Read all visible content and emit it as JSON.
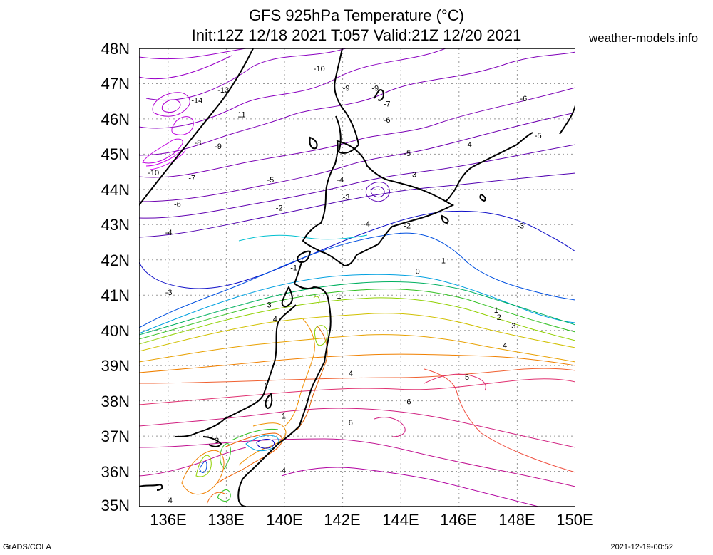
{
  "header": {
    "title_line1": "GFS 925hPa Temperature (°C)",
    "title_line2": "Init:12Z 12/18 2021 T:057 Valid:21Z 12/20 2021",
    "site": "weather-models.info"
  },
  "footer": {
    "left": "GrADS/COLA",
    "right": "2021-12-19-00:52"
  },
  "axes": {
    "lat_labels": [
      "48N",
      "47N",
      "46N",
      "45N",
      "44N",
      "43N",
      "42N",
      "41N",
      "40N",
      "39N",
      "38N",
      "37N",
      "36N",
      "35N"
    ],
    "lon_labels": [
      "136E",
      "138E",
      "140E",
      "142E",
      "144E",
      "146E",
      "148E",
      "150E"
    ],
    "lat_range": [
      35,
      48
    ],
    "lon_range": [
      135,
      150
    ],
    "grid": "dotted"
  },
  "contour_labels": [
    {
      "text": "-10",
      "lon": 141.0,
      "lat": 47.35
    },
    {
      "text": "-13",
      "lon": 137.7,
      "lat": 46.75
    },
    {
      "text": "-14",
      "lon": 136.8,
      "lat": 46.45
    },
    {
      "text": "-11",
      "lon": 138.3,
      "lat": 46.05
    },
    {
      "text": "-9",
      "lon": 142.0,
      "lat": 46.8
    },
    {
      "text": "-9",
      "lon": 143.0,
      "lat": 46.8
    },
    {
      "text": "-7",
      "lon": 143.4,
      "lat": 46.35
    },
    {
      "text": "-6",
      "lon": 143.4,
      "lat": 45.9
    },
    {
      "text": "-6",
      "lon": 148.1,
      "lat": 46.5
    },
    {
      "text": "-8",
      "lon": 136.9,
      "lat": 45.25
    },
    {
      "text": "-9",
      "lon": 137.6,
      "lat": 45.15
    },
    {
      "text": "-10",
      "lon": 135.3,
      "lat": 44.4
    },
    {
      "text": "-7",
      "lon": 136.7,
      "lat": 44.25
    },
    {
      "text": "-6",
      "lon": 136.2,
      "lat": 43.5
    },
    {
      "text": "-5",
      "lon": 139.4,
      "lat": 44.2
    },
    {
      "text": "-5",
      "lon": 144.1,
      "lat": 44.95
    },
    {
      "text": "-5",
      "lon": 148.6,
      "lat": 45.45
    },
    {
      "text": "-4",
      "lon": 146.2,
      "lat": 45.2
    },
    {
      "text": "-4",
      "lon": 141.8,
      "lat": 44.2
    },
    {
      "text": "-4",
      "lon": 135.9,
      "lat": 42.7
    },
    {
      "text": "-3",
      "lon": 144.3,
      "lat": 44.35
    },
    {
      "text": "-3",
      "lon": 142.0,
      "lat": 43.7
    },
    {
      "text": "-3",
      "lon": 148.0,
      "lat": 42.9
    },
    {
      "text": "-3",
      "lon": 135.9,
      "lat": 41.0
    },
    {
      "text": "-2",
      "lon": 139.7,
      "lat": 43.4
    },
    {
      "text": "-2",
      "lon": 144.1,
      "lat": 42.9
    },
    {
      "text": "-4",
      "lon": 142.7,
      "lat": 42.95
    },
    {
      "text": "-1",
      "lon": 145.3,
      "lat": 41.9
    },
    {
      "text": "-1",
      "lon": 140.2,
      "lat": 41.7
    },
    {
      "text": "0",
      "lon": 144.5,
      "lat": 41.6
    },
    {
      "text": "1",
      "lon": 141.8,
      "lat": 40.9
    },
    {
      "text": "1",
      "lon": 147.2,
      "lat": 40.5
    },
    {
      "text": "2",
      "lon": 147.3,
      "lat": 40.3
    },
    {
      "text": "3",
      "lon": 147.8,
      "lat": 40.05
    },
    {
      "text": "3",
      "lon": 139.4,
      "lat": 40.65
    },
    {
      "text": "4",
      "lon": 139.6,
      "lat": 40.25
    },
    {
      "text": "4",
      "lon": 147.5,
      "lat": 39.5
    },
    {
      "text": "4",
      "lon": 142.2,
      "lat": 38.7
    },
    {
      "text": "5",
      "lon": 146.2,
      "lat": 38.6
    },
    {
      "text": "6",
      "lon": 144.2,
      "lat": 37.9
    },
    {
      "text": "6",
      "lon": 142.2,
      "lat": 37.3
    },
    {
      "text": "2",
      "lon": 139.3,
      "lat": 38.45
    },
    {
      "text": "1",
      "lon": 139.9,
      "lat": 37.5
    },
    {
      "text": "3",
      "lon": 137.6,
      "lat": 36.8
    },
    {
      "text": "4",
      "lon": 139.9,
      "lat": 35.95
    },
    {
      "text": "4",
      "lon": 136.0,
      "lat": 35.1
    }
  ]
}
